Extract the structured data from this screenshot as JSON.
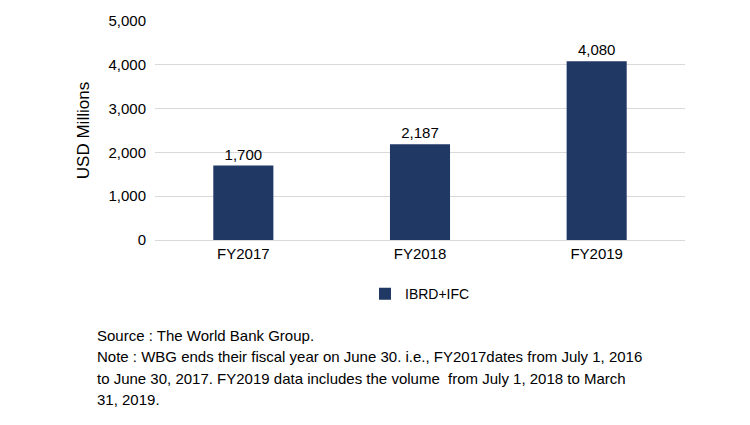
{
  "chart_data": {
    "type": "bar",
    "categories": [
      "FY2017",
      "FY2018",
      "FY2019"
    ],
    "series": [
      {
        "name": "IBRD+IFC",
        "color": "#1f3864",
        "values": [
          1700,
          2187,
          4080
        ],
        "value_labels": [
          "1,700",
          "2,187",
          "4,080"
        ]
      }
    ],
    "y_label": "USD Millions",
    "ylim": [
      0,
      5000
    ],
    "yticks": [
      0,
      {
        "value": 1000,
        "label": "1,000"
      },
      {
        "value": 2000,
        "label": "2,000"
      },
      {
        "value": 3000,
        "label": "3,000"
      },
      {
        "value": 4000,
        "label": "4,000"
      },
      {
        "value": 5000,
        "label": "5,000"
      }
    ],
    "grid": true,
    "legend": "bottom",
    "data_labels": true,
    "annotations": [
      "Source : The World Bank Group.",
      "Note : WBG ends their fiscal year on June 30. i.e., FY2017dates from July 1, 2016",
      "to June 30, 2017. FY2019 data includes the volume  from July 1, 2018 to March",
      "31, 2019."
    ]
  }
}
